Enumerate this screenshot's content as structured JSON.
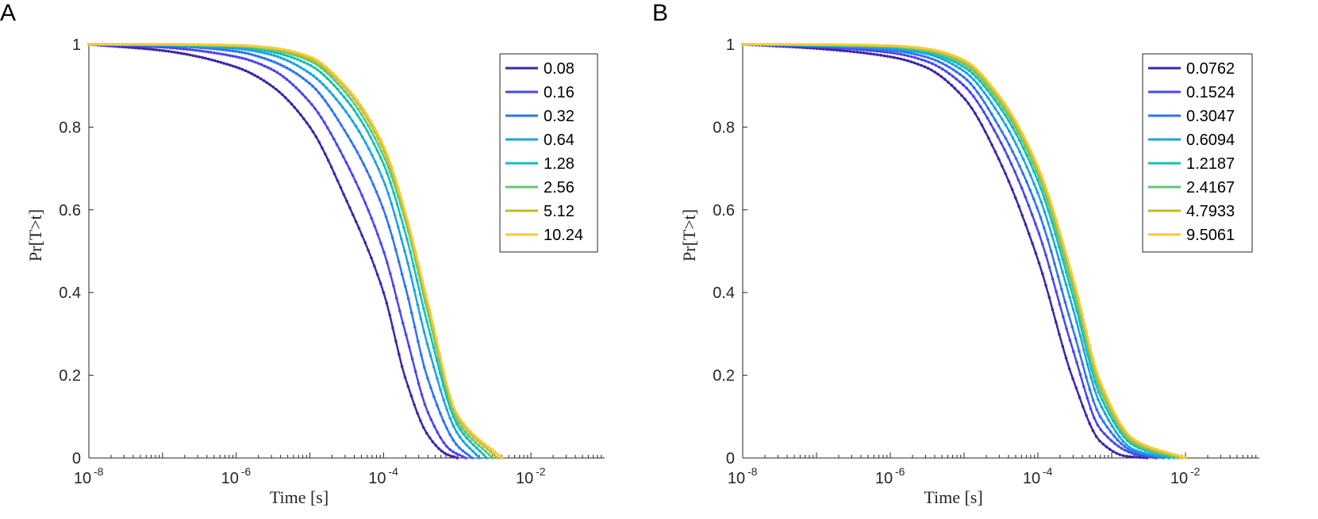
{
  "chart_data": [
    {
      "panel": "A",
      "type": "line",
      "xlabel": "Time [s]",
      "ylabel": "Pr[T>t]",
      "xscale": "log",
      "xlim": [
        1e-08,
        0.1
      ],
      "ylim": [
        0,
        1
      ],
      "xticks": [
        {
          "base": "10",
          "exp": "-8"
        },
        {
          "base": "10",
          "exp": "-6"
        },
        {
          "base": "10",
          "exp": "-4"
        },
        {
          "base": "10",
          "exp": "-2"
        }
      ],
      "yticks": [
        "0",
        "0.2",
        "0.4",
        "0.6",
        "0.8",
        "1"
      ],
      "legend_position": "top-right",
      "series": [
        {
          "name": "0.08",
          "color": "#3e26a8",
          "x": [
            1e-08,
            1e-07,
            1e-06,
            3e-06,
            1e-05,
            3e-05,
            0.0001,
            0.0002,
            0.0004,
            0.0007,
            0.001
          ],
          "y": [
            1.0,
            0.985,
            0.945,
            0.9,
            0.8,
            0.63,
            0.4,
            0.19,
            0.055,
            0.01,
            0.0
          ]
        },
        {
          "name": "0.16",
          "color": "#4a45f0",
          "x": [
            1e-08,
            1e-07,
            1e-06,
            3e-06,
            1e-05,
            3e-05,
            0.0001,
            0.0002,
            0.0004,
            0.0008,
            0.0013
          ],
          "y": [
            1.0,
            0.993,
            0.97,
            0.94,
            0.86,
            0.72,
            0.5,
            0.3,
            0.11,
            0.02,
            0.0
          ]
        },
        {
          "name": "0.32",
          "color": "#2f73f3",
          "x": [
            1e-08,
            1e-07,
            1e-06,
            3e-06,
            1e-05,
            3e-05,
            0.0001,
            0.0002,
            0.0004,
            0.001,
            0.0016
          ],
          "y": [
            1.0,
            0.997,
            0.983,
            0.96,
            0.905,
            0.79,
            0.6,
            0.41,
            0.19,
            0.03,
            0.0
          ]
        },
        {
          "name": "0.64",
          "color": "#1aa3e2",
          "x": [
            1e-08,
            1e-07,
            1e-06,
            3e-06,
            1e-05,
            3e-05,
            0.0001,
            0.0002,
            0.0004,
            0.001,
            0.002
          ],
          "y": [
            1.0,
            0.998,
            0.99,
            0.975,
            0.93,
            0.84,
            0.67,
            0.49,
            0.27,
            0.06,
            0.0
          ]
        },
        {
          "name": "1.28",
          "color": "#12bfb4",
          "x": [
            1e-08,
            1e-07,
            1e-06,
            3e-06,
            1e-05,
            3e-05,
            0.0001,
            0.0002,
            0.0004,
            0.001,
            0.0025
          ],
          "y": [
            1.0,
            0.999,
            0.994,
            0.982,
            0.95,
            0.87,
            0.71,
            0.54,
            0.32,
            0.08,
            0.0
          ]
        },
        {
          "name": "2.56",
          "color": "#63c774",
          "x": [
            1e-08,
            1e-07,
            1e-06,
            3e-06,
            1e-05,
            3e-05,
            0.0001,
            0.0002,
            0.0004,
            0.001,
            0.003
          ],
          "y": [
            1.0,
            0.999,
            0.996,
            0.987,
            0.96,
            0.885,
            0.73,
            0.57,
            0.35,
            0.09,
            0.0
          ]
        },
        {
          "name": "5.12",
          "color": "#c4ba2a",
          "x": [
            1e-08,
            1e-07,
            1e-06,
            3e-06,
            1e-05,
            3e-05,
            0.0001,
            0.0002,
            0.0004,
            0.001,
            0.0035
          ],
          "y": [
            1.0,
            1.0,
            0.997,
            0.99,
            0.965,
            0.895,
            0.745,
            0.58,
            0.365,
            0.1,
            0.0
          ]
        },
        {
          "name": "10.24",
          "color": "#f7c93b",
          "x": [
            1e-08,
            1e-07,
            1e-06,
            3e-06,
            1e-05,
            3e-05,
            0.0001,
            0.0002,
            0.0004,
            0.001,
            0.004
          ],
          "y": [
            1.0,
            1.0,
            0.998,
            0.992,
            0.97,
            0.9,
            0.755,
            0.59,
            0.375,
            0.105,
            0.0
          ]
        }
      ]
    },
    {
      "panel": "B",
      "type": "line",
      "xlabel": "Time [s]",
      "ylabel": "Pr[T>t]",
      "xscale": "log",
      "xlim": [
        1e-08,
        0.1
      ],
      "ylim": [
        0,
        1
      ],
      "xticks": [
        {
          "base": "10",
          "exp": "-8"
        },
        {
          "base": "10",
          "exp": "-6"
        },
        {
          "base": "10",
          "exp": "-4"
        },
        {
          "base": "10",
          "exp": "-2"
        }
      ],
      "yticks": [
        "0",
        "0.2",
        "0.4",
        "0.6",
        "0.8",
        "1"
      ],
      "legend_position": "top-right",
      "series": [
        {
          "name": "0.0762",
          "color": "#3e26a8",
          "x": [
            1e-08,
            1e-07,
            1e-06,
            3e-06,
            1e-05,
            3e-05,
            0.0001,
            0.0003,
            0.0007,
            0.0015,
            0.003
          ],
          "y": [
            1.0,
            0.99,
            0.97,
            0.945,
            0.87,
            0.72,
            0.48,
            0.19,
            0.04,
            0.005,
            0.0
          ]
        },
        {
          "name": "0.1524",
          "color": "#4a45f0",
          "x": [
            1e-08,
            1e-07,
            1e-06,
            3e-06,
            1e-05,
            3e-05,
            0.0001,
            0.0003,
            0.0007,
            0.002,
            0.004
          ],
          "y": [
            1.0,
            0.994,
            0.98,
            0.96,
            0.9,
            0.77,
            0.55,
            0.26,
            0.07,
            0.01,
            0.0
          ]
        },
        {
          "name": "0.3047",
          "color": "#2f73f3",
          "x": [
            1e-08,
            1e-07,
            1e-06,
            3e-06,
            1e-05,
            3e-05,
            0.0001,
            0.0003,
            0.0007,
            0.002,
            0.005
          ],
          "y": [
            1.0,
            0.996,
            0.986,
            0.97,
            0.92,
            0.8,
            0.6,
            0.31,
            0.1,
            0.015,
            0.0
          ]
        },
        {
          "name": "0.6094",
          "color": "#1aa3e2",
          "x": [
            1e-08,
            1e-07,
            1e-06,
            3e-06,
            1e-05,
            3e-05,
            0.0001,
            0.0003,
            0.0007,
            0.002,
            0.006
          ],
          "y": [
            1.0,
            0.997,
            0.99,
            0.978,
            0.935,
            0.83,
            0.64,
            0.36,
            0.13,
            0.02,
            0.0
          ]
        },
        {
          "name": "1.2187",
          "color": "#12bfb4",
          "x": [
            1e-08,
            1e-07,
            1e-06,
            3e-06,
            1e-05,
            3e-05,
            0.0001,
            0.0003,
            0.0007,
            0.002,
            0.007
          ],
          "y": [
            1.0,
            0.998,
            0.993,
            0.982,
            0.945,
            0.85,
            0.67,
            0.39,
            0.15,
            0.03,
            0.0
          ]
        },
        {
          "name": "2.4167",
          "color": "#63c774",
          "x": [
            1e-08,
            1e-07,
            1e-06,
            3e-06,
            1e-05,
            3e-05,
            0.0001,
            0.0003,
            0.0007,
            0.002,
            0.008
          ],
          "y": [
            1.0,
            0.999,
            0.995,
            0.985,
            0.952,
            0.86,
            0.685,
            0.41,
            0.165,
            0.035,
            0.0
          ]
        },
        {
          "name": "4.7933",
          "color": "#c4ba2a",
          "x": [
            1e-08,
            1e-07,
            1e-06,
            3e-06,
            1e-05,
            3e-05,
            0.0001,
            0.0003,
            0.0007,
            0.002,
            0.009
          ],
          "y": [
            1.0,
            0.999,
            0.996,
            0.988,
            0.957,
            0.868,
            0.695,
            0.425,
            0.175,
            0.04,
            0.0
          ]
        },
        {
          "name": "9.5061",
          "color": "#f7c93b",
          "x": [
            1e-08,
            1e-07,
            1e-06,
            3e-06,
            1e-05,
            3e-05,
            0.0001,
            0.0003,
            0.0007,
            0.002,
            0.01
          ],
          "y": [
            1.0,
            1.0,
            0.997,
            0.99,
            0.962,
            0.875,
            0.705,
            0.435,
            0.185,
            0.045,
            0.0
          ]
        }
      ]
    }
  ]
}
